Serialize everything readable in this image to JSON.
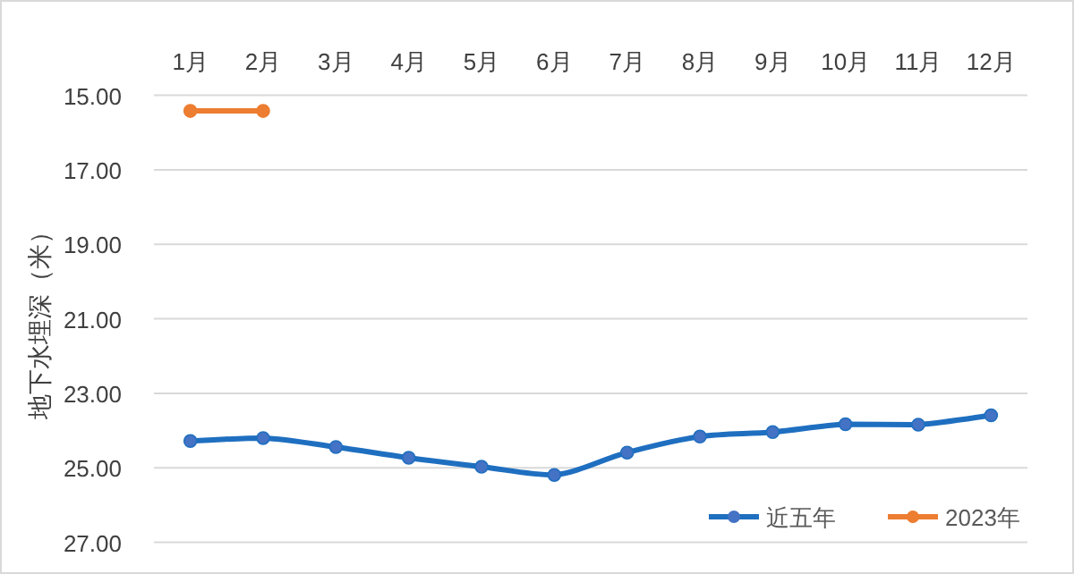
{
  "chart_data": {
    "type": "line",
    "ylabel": "地下水埋深（米）",
    "categories": [
      "1月",
      "2月",
      "3月",
      "4月",
      "5月",
      "6月",
      "7月",
      "8月",
      "9月",
      "10月",
      "11月",
      "12月"
    ],
    "series": [
      {
        "name": "近五年",
        "color": "#1f6fc0",
        "values": [
          24.28,
          24.2,
          24.44,
          24.73,
          24.97,
          25.19,
          24.59,
          24.16,
          24.04,
          23.83,
          23.84,
          23.59
        ]
      },
      {
        "name": "2023年",
        "color": "#ed7d31",
        "values": [
          15.42,
          15.42,
          null,
          null,
          null,
          null,
          null,
          null,
          null,
          null,
          null,
          null
        ]
      }
    ],
    "ylim": [
      27,
      15
    ],
    "yticks": [
      {
        "value": 15,
        "label": "15.00"
      },
      {
        "value": 17,
        "label": "17.00"
      },
      {
        "value": 19,
        "label": "19.00"
      },
      {
        "value": 21,
        "label": "21.00"
      },
      {
        "value": 23,
        "label": "23.00"
      },
      {
        "value": 25,
        "label": "25.00"
      },
      {
        "value": 27,
        "label": "27.00"
      }
    ],
    "grid": "y",
    "legend": "bottom right",
    "marker": "circle",
    "line_style": "solid"
  }
}
